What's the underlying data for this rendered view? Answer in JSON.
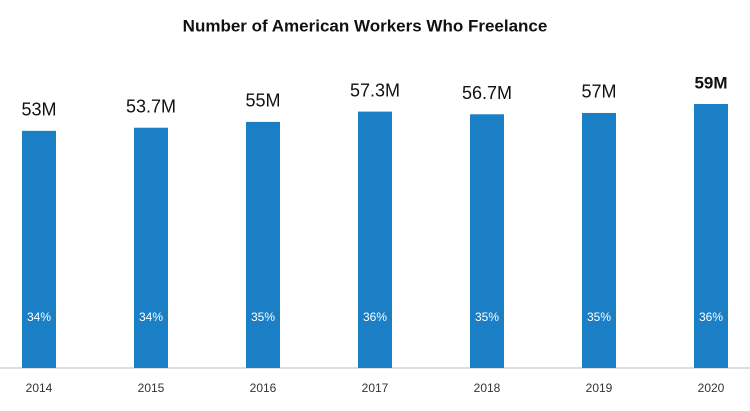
{
  "chart_data": {
    "type": "bar",
    "title": "Number of American Workers Who Freelance",
    "categories": [
      "2014",
      "2015",
      "2016",
      "2017",
      "2018",
      "2019",
      "2020"
    ],
    "values": [
      53,
      53.7,
      55,
      57.3,
      56.7,
      57,
      59
    ],
    "value_labels": [
      "53M",
      "53.7M",
      "55M",
      "57.3M",
      "56.7M",
      "57M",
      "59M"
    ],
    "percent_values": [
      34,
      34,
      35,
      36,
      35,
      35,
      36
    ],
    "percent_labels": [
      "34%",
      "34%",
      "35%",
      "36%",
      "35%",
      "35%",
      "36%"
    ],
    "color": "#1a7fc4"
  }
}
